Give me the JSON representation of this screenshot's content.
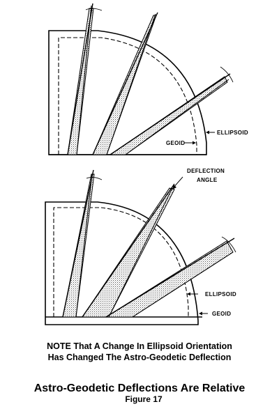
{
  "top_diagram": {
    "labels": {
      "geoid": "GEOID",
      "ellipsoid": "ELLIPSOID"
    }
  },
  "bottom_diagram": {
    "labels": {
      "deflection_line1": "DEFLECTION",
      "deflection_line2": "ANGLE",
      "ellipsoid": "ELLIPSOID",
      "geoid": "GEOID"
    }
  },
  "caption": {
    "note_line1": "NOTE That A Change In Ellipsoid Orientation",
    "note_line2": "Has Changed The Astro-Geodetic Deflection",
    "title": "Astro-Geodetic Deflections Are Relative",
    "figure": "Figure  17"
  },
  "colors": {
    "ink": "#000000",
    "stipple": "#777777",
    "background": "#ffffff"
  }
}
